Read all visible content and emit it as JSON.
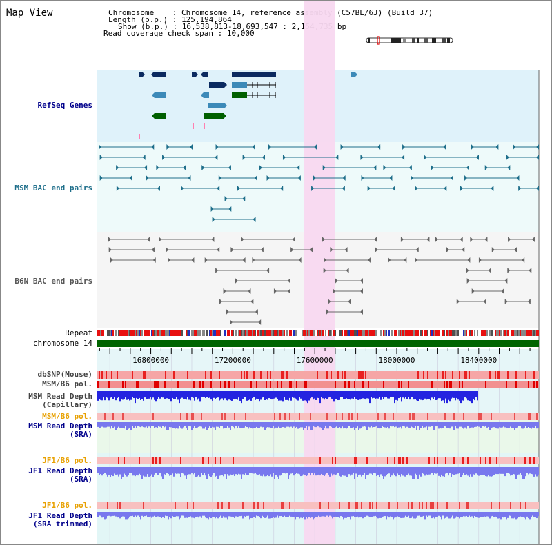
{
  "title": "Map View",
  "header": {
    "chromosome_key": "Chromosome   ",
    "chromosome_val": "Chromosome 14, reference assembly (C57BL/6J) (Build 37)",
    "length_key": "Length (b.p.)",
    "length_val": "125,194,864",
    "show_key": "Show (b.p.)",
    "show_val": "16,538,813-18,693,547 : 2,154,735 bp",
    "coverage_key": "Read coverage check span",
    "coverage_val": "10,000"
  },
  "tracks": {
    "refseq": "RefSeq Genes",
    "msm_bac": "MSM BAC end pairs",
    "b6n_bac": "B6N BAC end pairs",
    "repeat": "Repeat",
    "chrom": "chromosome 14",
    "dbsnp": "dbSNP(Mouse)",
    "msm_pol1": "MSM/B6 pol.",
    "msm_depth_cap_1": "MSM Read Depth",
    "msm_depth_cap_2": "(Capillary)",
    "msm_pol2": "MSM/B6 pol.",
    "msm_depth_sra_1": "MSM Read Depth",
    "msm_depth_sra_2": "(SRA)",
    "jf1_pol1": "JF1/B6 pol.",
    "jf1_depth_sra_1": "JF1 Read Depth",
    "jf1_depth_sra_2": "(SRA)",
    "jf1_pol2": "JF1/B6 pol.",
    "jf1_depth_trim_1": "JF1 Read Depth",
    "jf1_depth_trim_2": "(SRA trimmed)"
  },
  "ruler": {
    "start": 16538813,
    "end": 18693547,
    "ticks": [
      "16800000",
      "17200000",
      "17600000",
      "18000000",
      "18400000"
    ]
  },
  "highlight": {
    "start": 17546000,
    "end": 17700000
  },
  "colors": {
    "refseq_bg": "#dff2fa",
    "bac_bg": "#eefafa",
    "b6n_bg": "#f5f5f5",
    "highlight": "#f8d8f0",
    "msm_bac": "#1e6e8a",
    "b6n_bac": "#666666",
    "chrom_bar": "#006400",
    "depth_cap": "#2424e0",
    "depth_sra": "#7878ee",
    "label_blue": "#00008b",
    "label_orange": "#e8a000",
    "label_gray": "#444444"
  }
}
